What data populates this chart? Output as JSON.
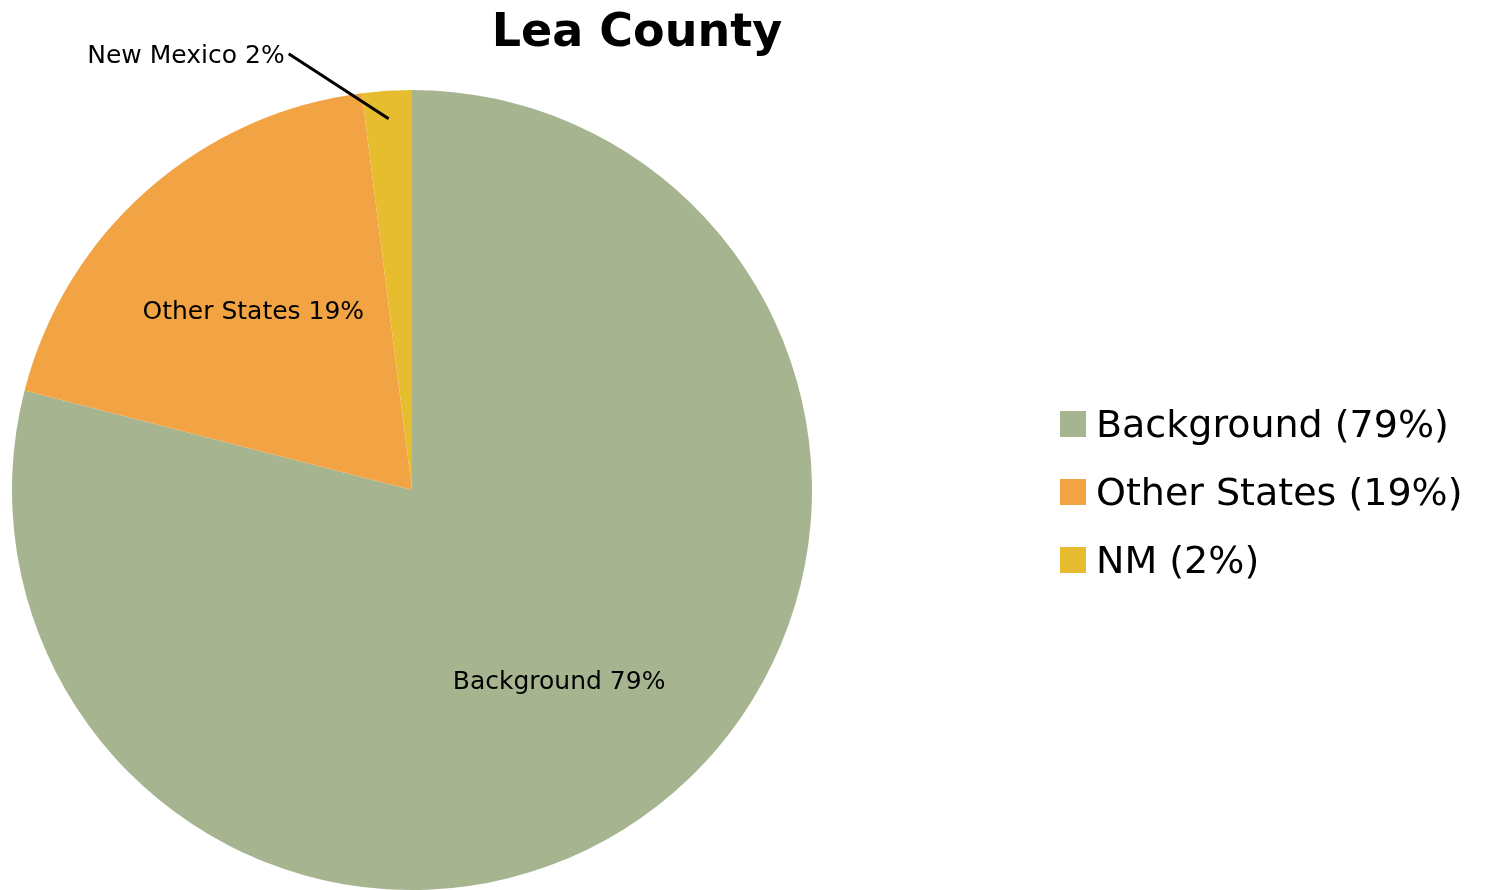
{
  "chart_data": {
    "type": "pie",
    "title": "Lea County",
    "categories": [
      "Background (79%)",
      "Other States (19%)",
      "NM (2%)"
    ],
    "values": [
      79,
      19,
      2
    ],
    "colors": [
      "#a6b590",
      "#f2a444",
      "#e6bd2e"
    ],
    "value_labels": [
      "Background 79%",
      "Other States 19%",
      "New Mexico 2%"
    ],
    "legend": "right"
  }
}
